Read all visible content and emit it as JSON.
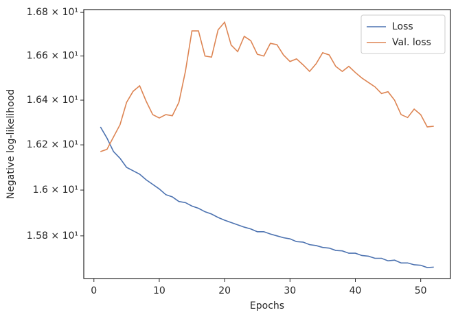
{
  "chart_data": {
    "type": "line",
    "xlabel": "Epochs",
    "ylabel": "Negative log-likelihood",
    "x": [
      1,
      2,
      3,
      4,
      5,
      6,
      7,
      8,
      9,
      10,
      11,
      12,
      13,
      14,
      15,
      16,
      17,
      18,
      19,
      20,
      21,
      22,
      23,
      24,
      25,
      26,
      27,
      28,
      29,
      30,
      31,
      32,
      33,
      34,
      35,
      36,
      37,
      38,
      39,
      40,
      41,
      42,
      43,
      44,
      45,
      46,
      47,
      48,
      49,
      50,
      51,
      52
    ],
    "series": [
      {
        "name": "Loss",
        "color": "#4c72b0",
        "values": [
          16.28,
          16.23,
          16.17,
          16.14,
          16.1,
          16.085,
          16.07,
          16.045,
          16.025,
          16.005,
          15.98,
          15.97,
          15.95,
          15.945,
          15.93,
          15.92,
          15.905,
          15.895,
          15.88,
          15.868,
          15.858,
          15.848,
          15.838,
          15.83,
          15.818,
          15.818,
          15.808,
          15.8,
          15.792,
          15.787,
          15.775,
          15.773,
          15.762,
          15.758,
          15.75,
          15.747,
          15.737,
          15.735,
          15.725,
          15.725,
          15.715,
          15.712,
          15.703,
          15.703,
          15.692,
          15.695,
          15.683,
          15.683,
          15.675,
          15.673,
          15.663,
          15.665
        ]
      },
      {
        "name": "Val. loss",
        "color": "#dd8452",
        "values": [
          16.17,
          16.18,
          16.235,
          16.29,
          16.39,
          16.44,
          16.465,
          16.395,
          16.335,
          16.32,
          16.335,
          16.33,
          16.39,
          16.53,
          16.715,
          16.715,
          16.6,
          16.595,
          16.72,
          16.755,
          16.65,
          16.62,
          16.69,
          16.67,
          16.608,
          16.6,
          16.658,
          16.652,
          16.605,
          16.575,
          16.587,
          16.56,
          16.53,
          16.565,
          16.615,
          16.605,
          16.553,
          16.53,
          16.553,
          16.525,
          16.5,
          16.48,
          16.46,
          16.43,
          16.438,
          16.4,
          16.335,
          16.322,
          16.36,
          16.335,
          16.28,
          16.283
        ]
      }
    ],
    "xlim": [
      -1.55,
      54.55
    ],
    "xticks": [
      0,
      10,
      20,
      30,
      40,
      50
    ],
    "ylim": [
      15.616,
      16.813
    ],
    "yscale": "log",
    "yticks": [
      {
        "value": 15.8,
        "label": "1.58 × 10¹"
      },
      {
        "value": 16.0,
        "label": "1.6 × 10¹"
      },
      {
        "value": 16.2,
        "label": "1.62 × 10¹"
      },
      {
        "value": 16.4,
        "label": "1.64 × 10¹"
      },
      {
        "value": 16.6,
        "label": "1.66 × 10¹"
      },
      {
        "value": 16.8,
        "label": "1.68 × 10¹"
      }
    ],
    "grid": false,
    "legend": "upper right"
  }
}
